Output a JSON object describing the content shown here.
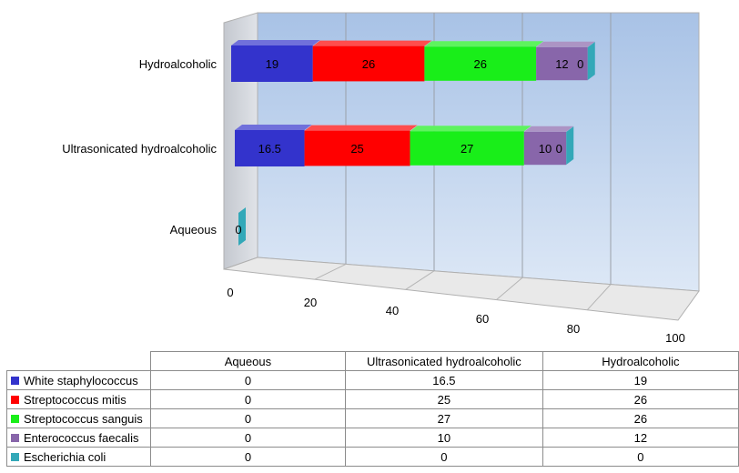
{
  "chart_data": {
    "type": "bar",
    "orientation": "horizontal",
    "stacked": true,
    "three_d": true,
    "categories": [
      "Aqueous",
      "Ultrasonicated hydroalcoholic",
      "Hydroalcoholic"
    ],
    "xlim": [
      0,
      100
    ],
    "x_ticks": [
      "0",
      "20",
      "40",
      "60",
      "80",
      "100"
    ],
    "grid": true,
    "legend": "table-below",
    "series": [
      {
        "name": "White staphylococcus",
        "color": "#3333cc",
        "values": [
          0,
          16.5,
          19
        ],
        "labels": [
          "0",
          "16.5",
          "19"
        ]
      },
      {
        "name": "Streptococcus mitis",
        "color": "#ff0000",
        "values": [
          0,
          25,
          26
        ],
        "labels": [
          "0",
          "25",
          "26"
        ]
      },
      {
        "name": "Streptococcus sanguis",
        "color": "#19ee19",
        "values": [
          0,
          27,
          26
        ],
        "labels": [
          "0",
          "27",
          "26"
        ]
      },
      {
        "name": "Enterococcus faecalis",
        "color": "#8866aa",
        "values": [
          0,
          10,
          12
        ],
        "labels": [
          "0",
          "10",
          "12"
        ]
      },
      {
        "name": "Escherichia coli",
        "color": "#33a8b8",
        "values": [
          0,
          0,
          0
        ],
        "labels": [
          "0",
          "0",
          "0"
        ]
      }
    ]
  },
  "table": {
    "header": [
      "Aqueous",
      "Ultrasonicated hydroalcoholic",
      "Hydroalcoholic"
    ]
  }
}
